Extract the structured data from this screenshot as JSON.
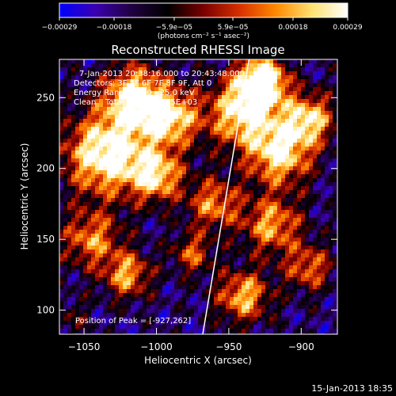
{
  "chart_data": {
    "type": "heatmap",
    "title": "Reconstructed RHESSI Image",
    "xlabel": "Heliocentric X (arcsec)",
    "ylabel": "Heliocentric Y (arcsec)",
    "xlim": [
      -1067,
      -875
    ],
    "ylim": [
      83,
      277
    ],
    "x_ticks": [
      -1050,
      -1000,
      -950,
      -900
    ],
    "y_ticks": [
      100,
      150,
      200,
      250
    ],
    "x_tick_labels": [
      "−1050",
      "−1000",
      "−950",
      "−900"
    ],
    "y_tick_labels": [
      "100",
      "150",
      "200",
      "250"
    ],
    "colorbar": {
      "range": [
        -0.00029,
        0.00029
      ],
      "tick_values": [
        -0.00029,
        -0.00018,
        -5.9e-05,
        5.9e-05,
        0.00018,
        0.00029
      ],
      "tick_labels": [
        "−0.00029",
        "−0.00018",
        "−5.9e−05",
        "5.9e−05",
        "0.00018",
        "0.00029"
      ],
      "unit_label": "(photons cm⁻² s⁻¹ asec⁻²)",
      "colormap": [
        "#0000ff",
        "#3a00b0",
        "#200040",
        "#000000",
        "#7a0000",
        "#d63000",
        "#ff8800",
        "#ffe070",
        "#ffffff"
      ]
    },
    "annotations": {
      "time_range": "7-Jan-2013 20:38:16.000 to 20:43:48.000",
      "detectors": "Detectors: 3F 5F 6F 7F 8F 9F, Att 0",
      "energy": "Energy Range: 12.0 - 25.0 keV",
      "method": "Clean",
      "counts": "Total counts: 6.15E+03",
      "peak": "Position of Peak = [-927,262]"
    },
    "peak_position": [
      -927,
      262
    ],
    "limb_line": {
      "x_start": -968,
      "y_start": 83,
      "x_end": -936,
      "y_end": 277
    },
    "grid": false
  },
  "footer": {
    "timestamp": "15-Jan-2013 18:35"
  }
}
